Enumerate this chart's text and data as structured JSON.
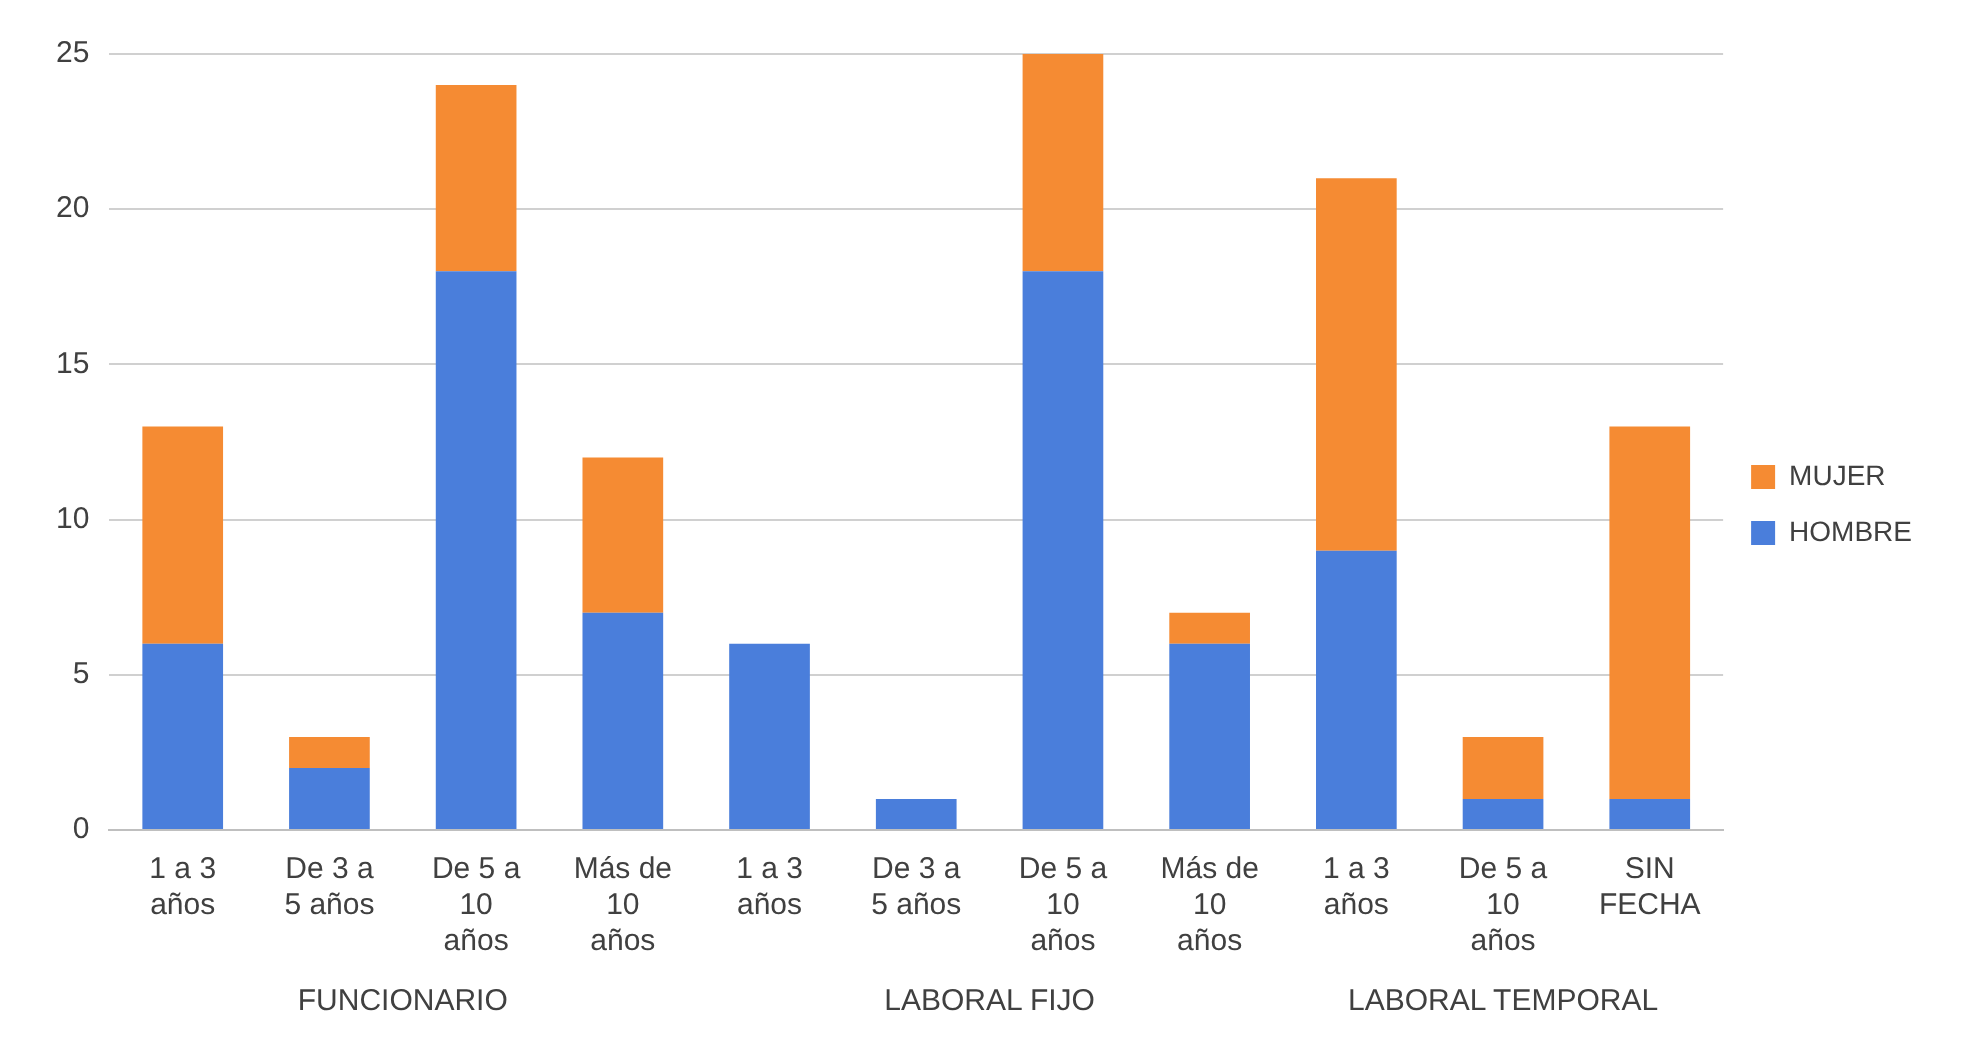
{
  "chart_data": {
    "type": "bar",
    "stacked": true,
    "categories": [
      "1 a 3 años",
      "De 3 a 5 años",
      "De 5 a 10 años",
      "Más de 10 años",
      "1 a 3 años",
      "De 3 a 5 años",
      "De 5 a 10 años",
      "Más de 10 años",
      "1 a 3 años",
      "De 5 a 10 años",
      "SIN FECHA"
    ],
    "series": [
      {
        "name": "HOMBRE",
        "color": "#4a7edb",
        "values": [
          6,
          2,
          18,
          7,
          6,
          1,
          18,
          6,
          9,
          1,
          1
        ]
      },
      {
        "name": "MUJER",
        "color": "#f58b33",
        "values": [
          7,
          1,
          6,
          5,
          0,
          0,
          7,
          1,
          12,
          2,
          12
        ]
      }
    ],
    "annotations": [
      "FUNCIONARIO",
      "LABORAL FIJO",
      "LABORAL TEMPORAL"
    ],
    "ylim": [
      0,
      25
    ],
    "yticks": [
      0,
      5,
      10,
      15,
      20,
      25
    ],
    "grid": "y",
    "legend": "right"
  }
}
